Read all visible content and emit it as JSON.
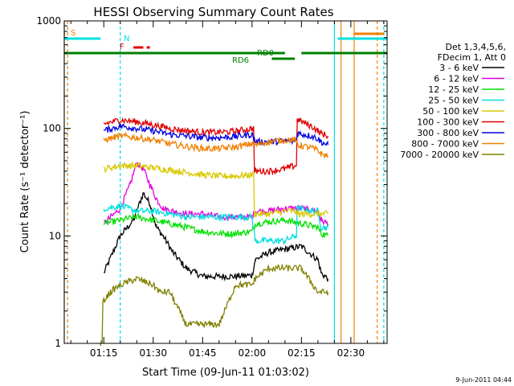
{
  "chart_data": {
    "type": "line",
    "title": "HESSI Observing Summary Count Rates",
    "xlabel": "Start Time (09-Jun-11 01:03:02)",
    "ylabel": "Count Rate (s⁻¹ detector⁻¹)",
    "y_scale": "log",
    "ylim": [
      1,
      1000
    ],
    "xlim": [
      "01:03",
      "02:41"
    ],
    "x_ticks": [
      "01:15",
      "01:30",
      "01:45",
      "02:00",
      "02:15",
      "02:30"
    ],
    "y_ticks": [
      "1",
      "10",
      "100",
      "1000"
    ],
    "legend": {
      "placement": "right",
      "header": [
        "Det 1,3,4,5,6,",
        "FDecim 1, Att 0"
      ],
      "entries": [
        {
          "label": "3 - 6 keV",
          "color": "#000000"
        },
        {
          "label": "6 - 12 keV",
          "color": "#e000e0"
        },
        {
          "label": "12 - 25 keV",
          "color": "#00e000"
        },
        {
          "label": "25 - 50 keV",
          "color": "#00e0e0"
        },
        {
          "label": "50 - 100 keV",
          "color": "#d8c800"
        },
        {
          "label": "100 - 300 keV",
          "color": "#e00000"
        },
        {
          "label": "300 - 800 keV",
          "color": "#0000e0"
        },
        {
          "label": "800 - 7000 keV",
          "color": "#f08000"
        },
        {
          "label": "7000 - 20000 keV",
          "color": "#808000"
        }
      ]
    },
    "flag_labels": {
      "saa": "S",
      "night": "N",
      "flare": "F",
      "rd0": "RD0",
      "rd6": "RD6"
    },
    "series": [
      {
        "name": "3 - 6 keV",
        "color": "#000000",
        "x": [
          "01:15",
          "01:20",
          "01:24",
          "01:27",
          "01:29",
          "01:31",
          "01:33",
          "01:36",
          "01:40",
          "01:45",
          "01:50",
          "01:55",
          "02:00",
          "02:01",
          "02:05",
          "02:10",
          "02:15",
          "02:20",
          "02:21",
          "02:23"
        ],
        "y": [
          4.5,
          10,
          14,
          25,
          20,
          12,
          10,
          7,
          5,
          4.2,
          4.2,
          4.2,
          4.3,
          6,
          7,
          7.5,
          8,
          6,
          4.5,
          4
        ]
      },
      {
        "name": "6 - 12 keV",
        "color": "#e000e0",
        "x": [
          "01:15",
          "01:20",
          "01:23",
          "01:25",
          "01:27",
          "01:29",
          "01:31",
          "01:33",
          "01:36",
          "01:40",
          "01:45",
          "01:50",
          "01:55",
          "02:00",
          "02:01",
          "02:05",
          "02:10",
          "02:15",
          "02:20",
          "02:21",
          "02:23"
        ],
        "y": [
          13,
          18,
          30,
          48,
          42,
          30,
          22,
          18,
          17,
          16,
          16,
          15,
          15,
          15,
          17,
          17,
          18,
          18,
          17,
          14,
          13
        ]
      },
      {
        "name": "12 - 25 keV",
        "color": "#00e000",
        "x": [
          "01:15",
          "01:20",
          "01:25",
          "01:30",
          "01:35",
          "01:40",
          "01:45",
          "01:50",
          "01:55",
          "02:00",
          "02:01",
          "02:05",
          "02:10",
          "02:15",
          "02:20",
          "02:21",
          "02:23"
        ],
        "y": [
          13,
          14,
          15,
          14,
          13,
          12,
          11,
          10.5,
          10.5,
          11,
          13,
          13.5,
          14,
          13,
          12,
          10.5,
          10
        ]
      },
      {
        "name": "25 - 50 keV",
        "color": "#00e0e0",
        "x": [
          "01:15",
          "01:20",
          "01:25",
          "01:30",
          "01:35",
          "01:40",
          "01:45",
          "01:50",
          "01:55",
          "02:00",
          "02:01",
          "02:05",
          "02:10",
          "02:13",
          "02:14",
          "02:18",
          "02:20",
          "02:21",
          "02:23"
        ],
        "y": [
          18,
          19,
          17,
          17,
          16,
          15,
          15,
          15,
          15,
          15,
          9,
          9,
          9,
          10,
          18,
          17,
          17,
          12,
          12
        ]
      },
      {
        "name": "50 - 100 keV",
        "color": "#d8c800",
        "x": [
          "01:15",
          "01:20",
          "01:25",
          "01:30",
          "01:35",
          "01:40",
          "01:45",
          "01:50",
          "01:55",
          "02:00",
          "02:01",
          "02:05",
          "02:10",
          "02:13",
          "02:14",
          "02:18",
          "02:20",
          "02:21",
          "02:23"
        ],
        "y": [
          42,
          45,
          45,
          43,
          41,
          39,
          37,
          36,
          36,
          37,
          16,
          16,
          17,
          17,
          16,
          16,
          16,
          16,
          16
        ]
      },
      {
        "name": "100 - 300 keV",
        "color": "#e00000",
        "x": [
          "01:15",
          "01:20",
          "01:25",
          "01:30",
          "01:35",
          "01:40",
          "01:45",
          "01:50",
          "01:55",
          "02:00",
          "02:01",
          "02:05",
          "02:10",
          "02:13",
          "02:14",
          "02:18",
          "02:20",
          "02:21",
          "02:23"
        ],
        "y": [
          110,
          120,
          115,
          108,
          100,
          95,
          92,
          92,
          94,
          100,
          40,
          40,
          42,
          45,
          120,
          105,
          95,
          90,
          85
        ]
      },
      {
        "name": "300 - 800 keV",
        "color": "#0000e0",
        "x": [
          "01:15",
          "01:20",
          "01:25",
          "01:30",
          "01:35",
          "01:40",
          "01:45",
          "01:50",
          "01:55",
          "02:00",
          "02:01",
          "02:05",
          "02:10",
          "02:13",
          "02:14",
          "02:18",
          "02:20",
          "02:21",
          "02:23"
        ],
        "y": [
          95,
          105,
          100,
          95,
          88,
          85,
          82,
          82,
          84,
          88,
          75,
          75,
          76,
          76,
          90,
          85,
          80,
          75,
          70
        ]
      },
      {
        "name": "800 - 7000 keV",
        "color": "#f08000",
        "x": [
          "01:15",
          "01:20",
          "01:25",
          "01:30",
          "01:35",
          "01:40",
          "01:45",
          "01:50",
          "01:55",
          "02:00",
          "02:01",
          "02:05",
          "02:10",
          "02:13",
          "02:14",
          "02:18",
          "02:20",
          "02:21",
          "02:23"
        ],
        "y": [
          78,
          85,
          82,
          78,
          72,
          68,
          65,
          65,
          67,
          72,
          70,
          75,
          78,
          78,
          70,
          66,
          62,
          58,
          55
        ]
      },
      {
        "name": "7000 - 20000 keV",
        "color": "#808000",
        "x": [
          "01:14",
          "01:15",
          "01:17",
          "01:20",
          "01:25",
          "01:30",
          "01:32",
          "01:35",
          "01:40",
          "01:45",
          "01:50",
          "01:55",
          "02:00",
          "02:01",
          "02:05",
          "02:10",
          "02:15",
          "02:20",
          "02:21",
          "02:23"
        ],
        "y": [
          1,
          2.5,
          3,
          3.5,
          4,
          3.5,
          3,
          3,
          1.5,
          1.5,
          1.5,
          3.5,
          3.5,
          4,
          5,
          5,
          5,
          3,
          3,
          3
        ]
      }
    ]
  },
  "flags": {
    "saa": {
      "color": "#f08000",
      "segments": [
        [
          "01:03",
          "01:03"
        ],
        [
          "02:31",
          "02:40"
        ]
      ]
    },
    "night": {
      "color": "#00e0e0",
      "segments": [
        [
          "01:03",
          "01:14"
        ],
        [
          "02:26",
          "02:41"
        ]
      ]
    },
    "flare": {
      "color": "#e00000",
      "segments": [
        [
          "01:24",
          "01:27"
        ],
        [
          "01:28",
          "01:29"
        ]
      ]
    },
    "rd0": {
      "color": "#008000",
      "segments": [
        [
          "01:03",
          "02:10"
        ],
        [
          "02:15",
          "02:41"
        ]
      ]
    },
    "rd6": {
      "color": "#008000",
      "segments": [
        [
          "02:06",
          "02:13"
        ]
      ]
    }
  },
  "verticals": [
    {
      "time": "01:03",
      "color": "#00e0e0",
      "dash": false
    },
    {
      "time": "01:04",
      "color": "#f08000",
      "dash": true
    },
    {
      "time": "01:20",
      "color": "#00e0e0",
      "dash": true
    },
    {
      "time": "02:25",
      "color": "#00e0e0",
      "dash": false
    },
    {
      "time": "02:27",
      "color": "#f08000",
      "dash": false
    },
    {
      "time": "02:31",
      "color": "#f08000",
      "dash": false
    },
    {
      "time": "02:38",
      "color": "#f08000",
      "dash": true
    },
    {
      "time": "02:40",
      "color": "#00e0e0",
      "dash": true
    }
  ],
  "stamp": "9-Jun-2011 04:44"
}
